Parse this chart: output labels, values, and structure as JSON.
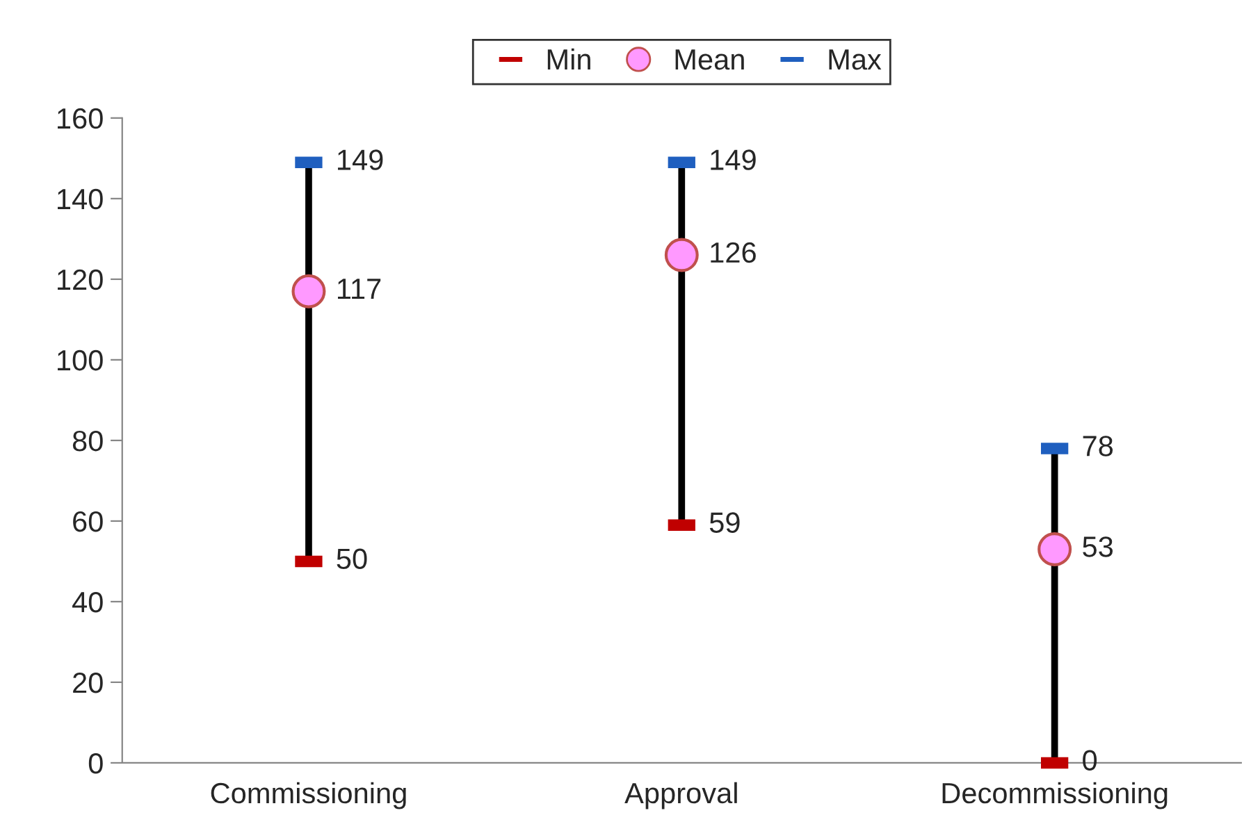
{
  "chart_data": {
    "type": "scatter",
    "categories": [
      "Commissioning",
      "Approval",
      "Decommissioning"
    ],
    "series": [
      {
        "name": "Min",
        "color": "#c00000",
        "values": [
          50,
          59,
          0
        ]
      },
      {
        "name": "Mean",
        "color": "#ff99ff",
        "values": [
          117,
          126,
          53
        ],
        "marker": "circle"
      },
      {
        "name": "Max",
        "color": "#1f5fbf",
        "values": [
          149,
          149,
          78
        ]
      }
    ],
    "ylim": [
      0,
      160
    ],
    "yticks": [
      0,
      20,
      40,
      60,
      80,
      100,
      120,
      140,
      160
    ],
    "data_labels": true,
    "legend": "top",
    "grid": false
  }
}
